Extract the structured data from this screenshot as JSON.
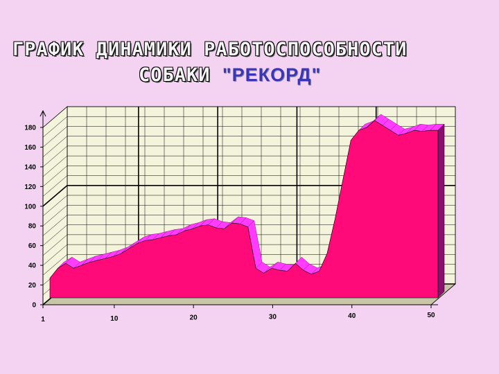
{
  "title": {
    "line1": "ГРАФИК ДИНАМИКИ РАБОТОСПОСОБНОСТИ",
    "line2_prefix": "СОБАКИ",
    "line2_highlight": "\"РЕКОРД\""
  },
  "colors": {
    "background": "#f3d3f1",
    "area_fill": "#ff0a78",
    "area_top": "#ff3cff",
    "area_side": "#8a1070",
    "floor": "#808080",
    "wall": "#f4f3dc",
    "grid": "#000000"
  },
  "chart_data": {
    "type": "area",
    "title": "ГРАФИК ДИНАМИКИ РАБОТОСПОСОБНОСТИ СОБАКИ \"РЕКОРД\"",
    "xlabel": "",
    "ylabel": "",
    "x": [
      1,
      2,
      3,
      4,
      5,
      6,
      7,
      8,
      9,
      10,
      11,
      12,
      13,
      14,
      15,
      16,
      17,
      18,
      19,
      20,
      21,
      22,
      23,
      24,
      25,
      26,
      27,
      28,
      29,
      30,
      31,
      32,
      33,
      34,
      35,
      36,
      37,
      38,
      39,
      40,
      41,
      42,
      43,
      44,
      45,
      46,
      47,
      48,
      49,
      50
    ],
    "values": [
      20,
      30,
      35,
      30,
      33,
      36,
      38,
      40,
      42,
      45,
      50,
      55,
      58,
      59,
      61,
      63,
      64,
      68,
      70,
      73,
      74,
      71,
      70,
      76,
      75,
      72,
      30,
      25,
      30,
      28,
      27,
      35,
      28,
      24,
      27,
      45,
      80,
      120,
      160,
      170,
      173,
      180,
      175,
      170,
      165,
      167,
      170,
      169,
      170,
      170
    ],
    "ylim": [
      0,
      180
    ],
    "yticks": [
      0,
      20,
      40,
      60,
      80,
      100,
      120,
      140,
      160,
      180
    ],
    "xticks": [
      1,
      10,
      20,
      30,
      40,
      50
    ],
    "grid": true
  }
}
